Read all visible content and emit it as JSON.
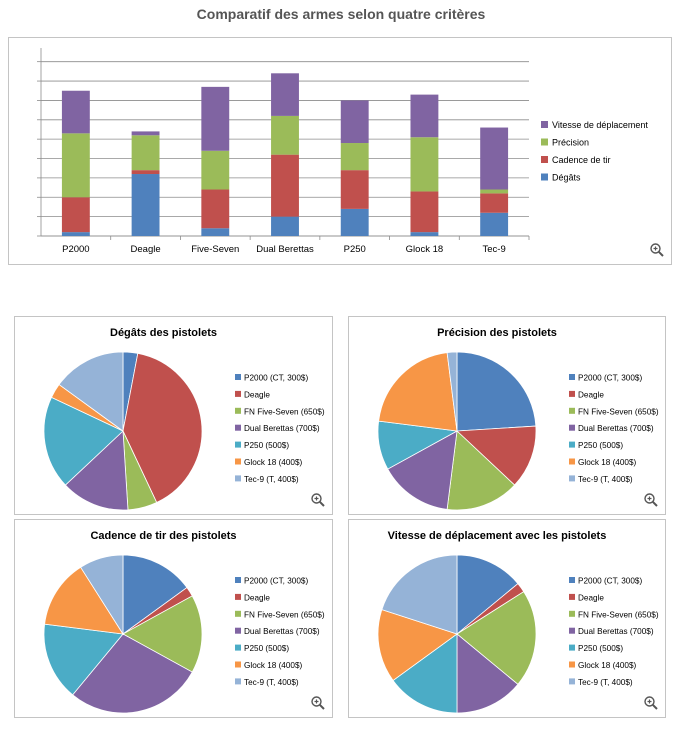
{
  "page": {
    "title": "Comparatif des armes selon quatre critères"
  },
  "colors": {
    "blue": "#4f81bd",
    "red": "#c0504d",
    "green": "#9bbb59",
    "purple": "#8064a2",
    "teal": "#4bacc6",
    "orange": "#f79646",
    "lightblue": "#95b3d7"
  },
  "icons": {
    "zoom": "zoom-magnifier-icon"
  },
  "chart_data": [
    {
      "type": "bar",
      "stacked": true,
      "categories": [
        "P2000",
        "Deagle",
        "Five-Seven",
        "Dual Berettas",
        "P250",
        "Glock 18",
        "Tec-9"
      ],
      "series": [
        {
          "name": "Dégâts",
          "color": "#4f81bd",
          "values": [
            2,
            32,
            4,
            10,
            14,
            2,
            12
          ]
        },
        {
          "name": "Cadence de tir",
          "color": "#c0504d",
          "values": [
            18,
            2,
            20,
            32,
            20,
            21,
            10
          ]
        },
        {
          "name": "Précision",
          "color": "#9bbb59",
          "values": [
            33,
            18,
            20,
            20,
            14,
            28,
            2
          ]
        },
        {
          "name": "Vitesse de déplacement",
          "color": "#8064a2",
          "values": [
            22,
            2,
            33,
            22,
            22,
            22,
            32
          ]
        }
      ],
      "ylim": [
        0,
        95
      ],
      "grid": true,
      "legend": "right",
      "title": ""
    },
    {
      "type": "pie",
      "title": "Dégâts des pistolets",
      "labels": [
        "P2000 (CT, 300$)",
        "Deagle",
        "FN Five-Seven (650$)",
        "Dual Berettas (700$)",
        "P250 (500$)",
        "Glock 18 (400$)",
        "Tec-9 (T, 400$)"
      ],
      "colors": [
        "#4f81bd",
        "#c0504d",
        "#9bbb59",
        "#8064a2",
        "#4bacc6",
        "#f79646",
        "#95b3d7"
      ],
      "values": [
        3,
        40,
        6,
        14,
        19,
        3,
        15
      ],
      "legend": "right"
    },
    {
      "type": "pie",
      "title": "Précision des pistolets",
      "labels": [
        "P2000 (CT, 300$)",
        "Deagle",
        "FN Five-Seven (650$)",
        "Dual Berettas (700$)",
        "P250 (500$)",
        "Glock 18 (400$)",
        "Tec-9 (T, 400$)"
      ],
      "colors": [
        "#4f81bd",
        "#c0504d",
        "#9bbb59",
        "#8064a2",
        "#4bacc6",
        "#f79646",
        "#95b3d7"
      ],
      "values": [
        24,
        13,
        15,
        15,
        10,
        21,
        2
      ],
      "legend": "right"
    },
    {
      "type": "pie",
      "title": "Cadence de tir des pistolets",
      "labels": [
        "P2000 (CT, 300$)",
        "Deagle",
        "FN Five-Seven (650$)",
        "Dual Berettas (700$)",
        "P250 (500$)",
        "Glock 18 (400$)",
        "Tec-9 (T, 400$)"
      ],
      "colors": [
        "#4f81bd",
        "#c0504d",
        "#9bbb59",
        "#8064a2",
        "#4bacc6",
        "#f79646",
        "#95b3d7"
      ],
      "values": [
        15,
        2,
        16,
        28,
        16,
        14,
        9
      ],
      "legend": "right"
    },
    {
      "type": "pie",
      "title": "Vitesse de déplacement avec les pistolets",
      "labels": [
        "P2000 (CT, 300$)",
        "Deagle",
        "FN Five-Seven (650$)",
        "Dual Berettas (700$)",
        "P250 (500$)",
        "Glock 18 (400$)",
        "Tec-9 (T, 400$)"
      ],
      "colors": [
        "#4f81bd",
        "#c0504d",
        "#9bbb59",
        "#8064a2",
        "#4bacc6",
        "#f79646",
        "#95b3d7"
      ],
      "values": [
        14,
        2,
        20,
        14,
        15,
        15,
        20
      ],
      "legend": "right"
    }
  ]
}
